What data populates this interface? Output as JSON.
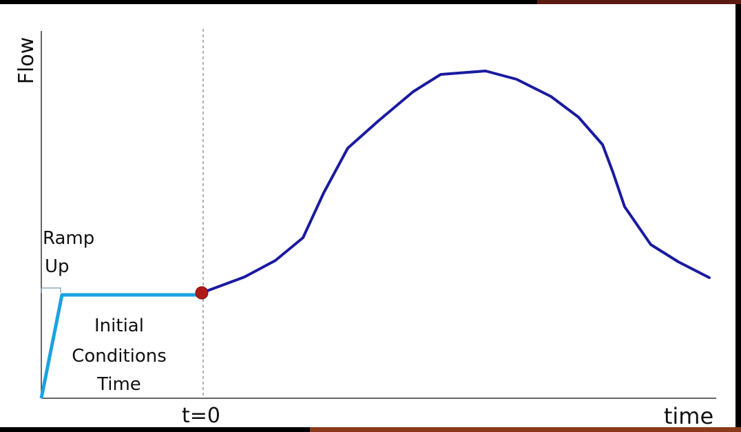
{
  "axes": {
    "y_label": "Flow",
    "x_label": "time",
    "t0_label": "t=0"
  },
  "annotations": {
    "ramp_up": [
      "Ramp",
      "Up"
    ],
    "initial_conditions": [
      "Initial",
      "Conditions",
      "Time"
    ]
  }
}
